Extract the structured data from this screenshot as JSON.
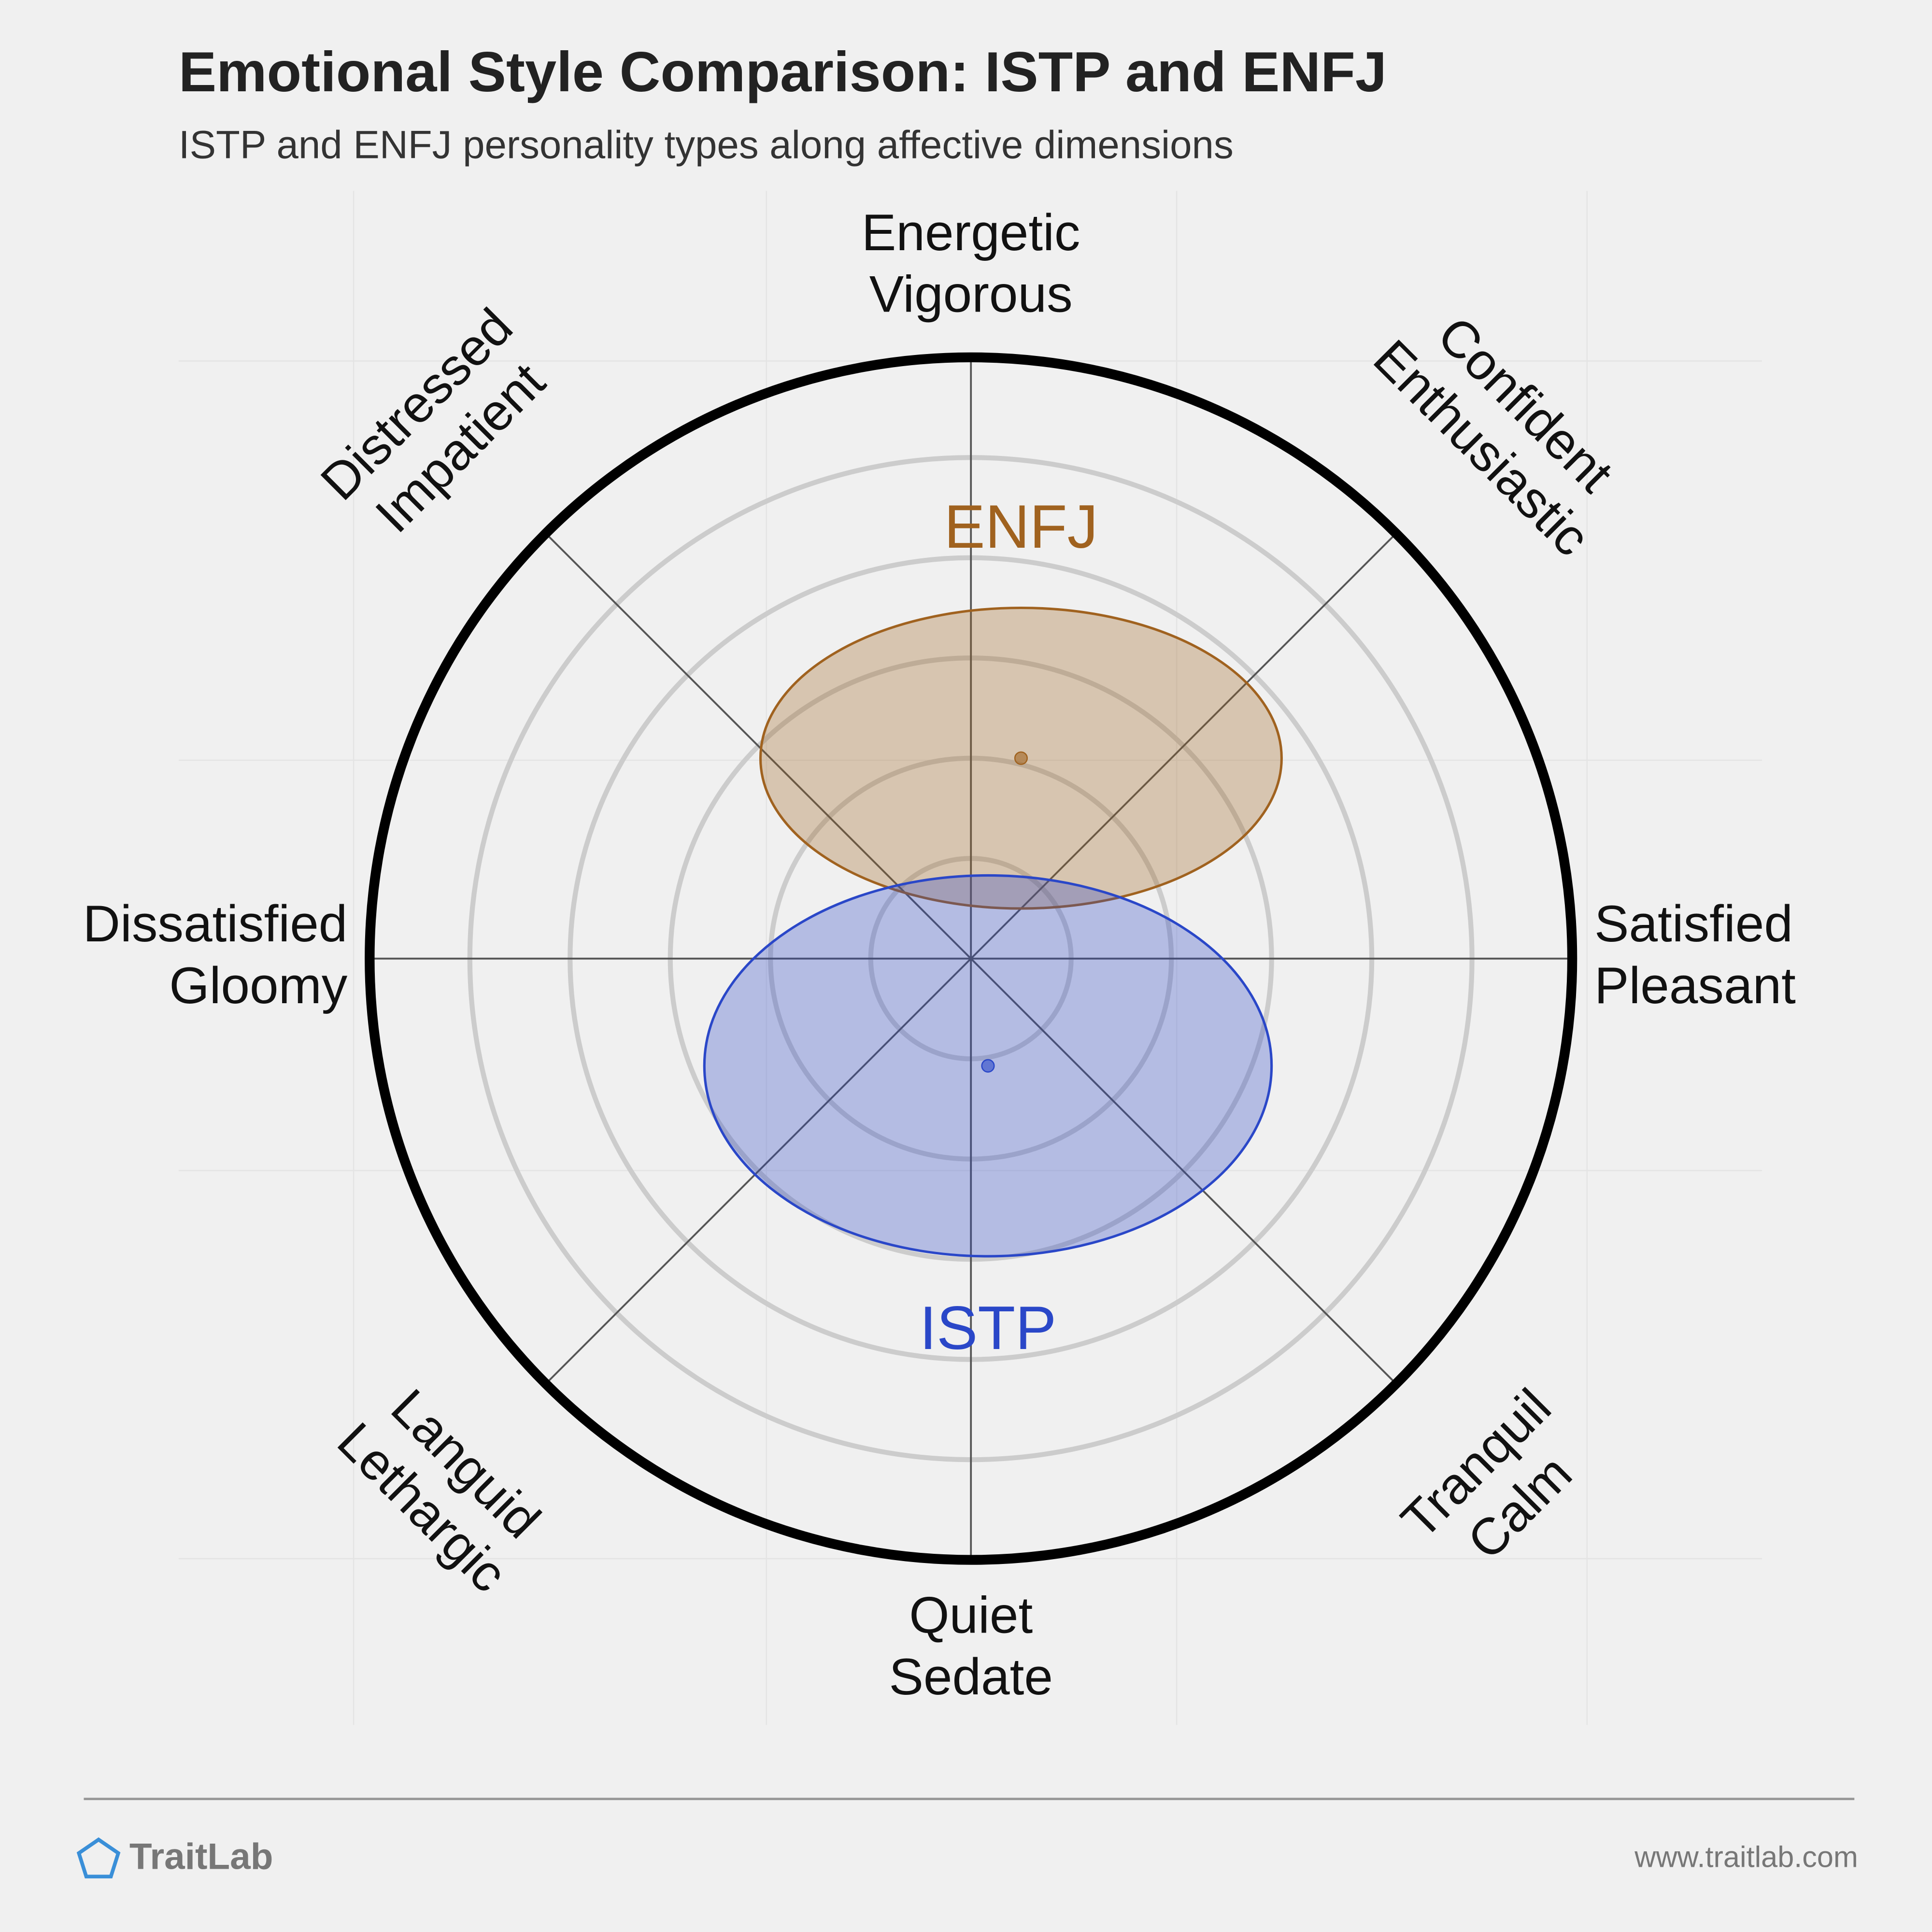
{
  "chart_data": {
    "type": "circumplex",
    "title": "Emotional Style Comparison: ISTP and ENFJ",
    "subtitle": "ISTP and ENFJ personality types along affective dimensions",
    "axis_labels": [
      [
        "Energetic",
        "Vigorous"
      ],
      [
        "Confident",
        "Enthusiastic"
      ],
      [
        "Satisfied",
        "Pleasant"
      ],
      [
        "Tranquil",
        "Calm"
      ],
      [
        "Quiet",
        "Sedate"
      ],
      [
        "Languid",
        "Lethargic"
      ],
      [
        "Dissatisfied",
        "Gloomy"
      ],
      [
        "Distressed",
        "Impatient"
      ]
    ],
    "xlim": [
      -6,
      6
    ],
    "ylim": [
      -6,
      6
    ],
    "rings": [
      1,
      2,
      3,
      4,
      5
    ],
    "series": [
      {
        "name": "ENFJ",
        "color": "#a0621f",
        "x": [
          0.5
        ],
        "values": [
          2
        ],
        "x_spread": [
          2.6
        ],
        "y_spread": [
          1.5
        ]
      },
      {
        "name": "ISTP",
        "color": "#2a47c8",
        "x": [
          0.17
        ],
        "values": [
          -1.07
        ],
        "x_spread": [
          2.83
        ],
        "y_spread": [
          1.9
        ]
      }
    ]
  },
  "footer": {
    "brand": "TraitLab",
    "url": "www.traitlab.com"
  }
}
